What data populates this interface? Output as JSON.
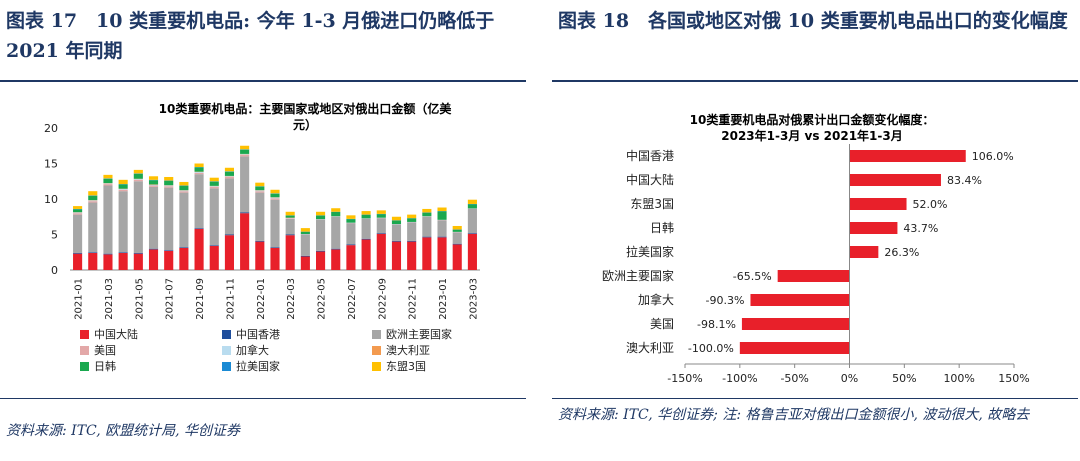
{
  "left": {
    "figure_title": "图表 17　10 类重要机电品: 今年 1-3 月俄进口仍略低于 2021 年同期",
    "source": "资料来源: ITC, 欧盟统计局, 华创证券"
  },
  "right": {
    "figure_title": "图表 18　各国或地区对俄 10 类重要机电品出口的变化幅度",
    "source": "资料来源: ITC, 华创证券; 注: 格鲁吉亚对俄出口金额很小, 波动很大, 故略去"
  },
  "colors": {
    "中国大陆": "#e8202a",
    "中国香港": "#1f4e9c",
    "欧洲主要国家": "#a6a6a6",
    "美国": "#e3a8a8",
    "加拿大": "#b9dcef",
    "澳大利亚": "#f39a4f",
    "日韩": "#1aa84f",
    "拉美国家": "#1a8ad4",
    "东盟3国": "#ffc000",
    "bar_right": "#e8202a",
    "title_navy": "#1f3864"
  },
  "chart_data": [
    {
      "type": "bar",
      "stacked": true,
      "title": "10类重要机电品：主要国家或地区对俄出口金额（亿美元）",
      "ylim": [
        0,
        20
      ],
      "yticks": [
        0,
        5,
        10,
        15,
        20
      ],
      "categories": [
        "2021-01",
        "2021-02",
        "2021-03",
        "2021-04",
        "2021-05",
        "2021-06",
        "2021-07",
        "2021-08",
        "2021-09",
        "2021-10",
        "2021-11",
        "2021-12",
        "2022-01",
        "2022-02",
        "2022-03",
        "2022-04",
        "2022-05",
        "2022-06",
        "2022-07",
        "2022-08",
        "2022-09",
        "2022-10",
        "2022-11",
        "2022-12",
        "2023-01",
        "2023-02",
        "2023-03"
      ],
      "xtick_labels": [
        "2021-01",
        "2021-03",
        "2021-05",
        "2021-07",
        "2021-09",
        "2021-11",
        "2022-01",
        "2022-03",
        "2022-05",
        "2022-07",
        "2022-09",
        "2022-11",
        "2023-01",
        "2023-03"
      ],
      "legend": [
        "中国大陆",
        "中国香港",
        "欧洲主要国家",
        "美国",
        "加拿大",
        "澳大利亚",
        "日韩",
        "拉美国家",
        "东盟3国"
      ],
      "legend_position": "bottom",
      "series": [
        {
          "name": "中国大陆",
          "values": [
            2.3,
            2.4,
            2.2,
            2.4,
            2.3,
            2.9,
            2.7,
            3.1,
            5.8,
            3.4,
            4.9,
            8.0,
            4.0,
            3.1,
            4.9,
            1.9,
            2.6,
            2.9,
            3.5,
            4.3,
            5.1,
            4.0,
            4.0,
            4.6,
            4.6,
            3.6,
            5.1
          ]
        },
        {
          "name": "中国香港",
          "values": [
            0.1,
            0.1,
            0.1,
            0.1,
            0.1,
            0.1,
            0.1,
            0.1,
            0.1,
            0.1,
            0.1,
            0.1,
            0.1,
            0.1,
            0.1,
            0.1,
            0.1,
            0.1,
            0.1,
            0.1,
            0.1,
            0.1,
            0.1,
            0.1,
            0.1,
            0.1,
            0.1
          ]
        },
        {
          "name": "欧洲主要国家",
          "values": [
            5.4,
            7.0,
            9.6,
            8.6,
            10.1,
            8.7,
            8.8,
            7.7,
            7.6,
            8.0,
            7.9,
            7.9,
            6.8,
            6.7,
            2.2,
            3.0,
            4.4,
            4.5,
            3.0,
            2.8,
            2.1,
            2.3,
            2.6,
            2.8,
            2.3,
            1.6,
            3.4
          ]
        },
        {
          "name": "美国",
          "values": [
            0.2,
            0.2,
            0.2,
            0.2,
            0.2,
            0.2,
            0.2,
            0.2,
            0.2,
            0.2,
            0.2,
            0.2,
            0.2,
            0.2,
            0.1,
            0.05,
            0.05,
            0.05,
            0.05,
            0.05,
            0.05,
            0.05,
            0.05,
            0.05,
            0.05,
            0.05,
            0.05
          ]
        },
        {
          "name": "加拿大",
          "values": [
            0.1,
            0.1,
            0.1,
            0.1,
            0.1,
            0.1,
            0.1,
            0.1,
            0.1,
            0.1,
            0.1,
            0.1,
            0.1,
            0.1,
            0.05,
            0.02,
            0.02,
            0.02,
            0.02,
            0.02,
            0.02,
            0.02,
            0.02,
            0.02,
            0.02,
            0.02,
            0.02
          ]
        },
        {
          "name": "澳大利亚",
          "values": [
            0.05,
            0.05,
            0.05,
            0.05,
            0.05,
            0.05,
            0.05,
            0.05,
            0.05,
            0.05,
            0.05,
            0.05,
            0.05,
            0.05,
            0.02,
            0.0,
            0.0,
            0.0,
            0.0,
            0.0,
            0.0,
            0.0,
            0.0,
            0.0,
            0.0,
            0.0,
            0.0
          ]
        },
        {
          "name": "日韩",
          "values": [
            0.4,
            0.6,
            0.6,
            0.6,
            0.7,
            0.6,
            0.6,
            0.6,
            0.6,
            0.6,
            0.6,
            0.6,
            0.5,
            0.5,
            0.3,
            0.3,
            0.5,
            0.6,
            0.5,
            0.5,
            0.5,
            0.5,
            0.5,
            0.5,
            1.2,
            0.3,
            0.6
          ]
        },
        {
          "name": "拉美国家",
          "values": [
            0.05,
            0.05,
            0.05,
            0.05,
            0.05,
            0.05,
            0.05,
            0.05,
            0.05,
            0.05,
            0.05,
            0.05,
            0.05,
            0.05,
            0.03,
            0.03,
            0.03,
            0.03,
            0.03,
            0.03,
            0.03,
            0.03,
            0.03,
            0.03,
            0.03,
            0.03,
            0.03
          ]
        },
        {
          "name": "东盟3国",
          "values": [
            0.4,
            0.6,
            0.5,
            0.6,
            0.5,
            0.5,
            0.5,
            0.5,
            0.5,
            0.5,
            0.5,
            0.5,
            0.5,
            0.5,
            0.5,
            0.5,
            0.5,
            0.5,
            0.5,
            0.5,
            0.5,
            0.5,
            0.5,
            0.5,
            0.5,
            0.5,
            0.6
          ]
        }
      ]
    },
    {
      "type": "bar",
      "orientation": "horizontal",
      "title": "10类重要机电品对俄累计出口金额变化幅度：2023年1-3月 vs 2021年1-3月",
      "title_lines": [
        "10类重要机电品对俄累计出口金额变化幅度：",
        "2023年1-3月 vs 2021年1-3月"
      ],
      "xlim": [
        -150,
        150
      ],
      "xtick_labels": [
        "-150%",
        "-100%",
        "-50%",
        "0%",
        "50%",
        "100%",
        "150%"
      ],
      "xticks": [
        -150,
        -100,
        -50,
        0,
        50,
        100,
        150
      ],
      "categories": [
        "中国香港",
        "中国大陆",
        "东盟3国",
        "日韩",
        "拉美国家",
        "欧洲主要国家",
        "加拿大",
        "美国",
        "澳大利亚"
      ],
      "values": [
        106.0,
        83.4,
        52.0,
        43.7,
        26.3,
        -65.5,
        -90.3,
        -98.1,
        -100.0
      ],
      "data_labels": [
        "106.0%",
        "83.4%",
        "52.0%",
        "43.7%",
        "26.3%",
        "-65.5%",
        "-90.3%",
        "-98.1%",
        "-100.0%"
      ]
    }
  ]
}
